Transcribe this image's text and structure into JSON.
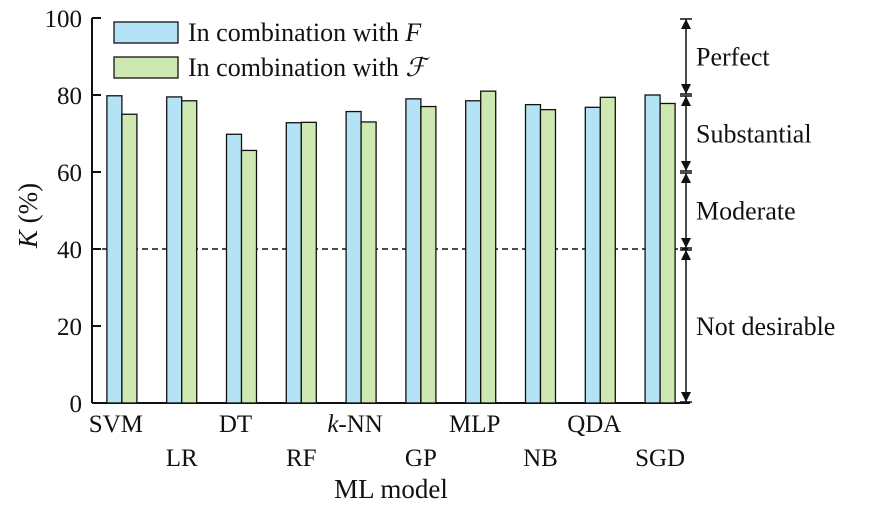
{
  "chart_data": {
    "type": "bar",
    "xlabel": "ML model",
    "ylabel": "K (%)",
    "ylim": [
      0,
      100
    ],
    "yticks": [
      0,
      20,
      40,
      60,
      80,
      100
    ],
    "grid": false,
    "legend_position": "top-left",
    "categories": [
      "SVM",
      "LR",
      "DT",
      "RF",
      "k-NN",
      "GP",
      "MLP",
      "NB",
      "QDA",
      "SGD"
    ],
    "series": [
      {
        "name": "In combination with F",
        "color": "#b3e3f5",
        "values": [
          79.8,
          79.5,
          69.8,
          72.8,
          75.7,
          79.0,
          78.5,
          77.5,
          76.8,
          80.0
        ]
      },
      {
        "name": "In combination with ℱ",
        "color": "#cde8b1",
        "values": [
          75.0,
          78.5,
          65.6,
          72.9,
          73.0,
          77.0,
          81.0,
          76.2,
          79.4,
          77.8
        ]
      }
    ],
    "reference_line": {
      "value": 40,
      "style": "dashed"
    },
    "bands": [
      {
        "label": "Perfect",
        "from": 80,
        "to": 100
      },
      {
        "label": "Substantial",
        "from": 60,
        "to": 80
      },
      {
        "label": "Moderate",
        "from": 40,
        "to": 60
      },
      {
        "label": "Not desirable",
        "from": 0,
        "to": 40
      }
    ]
  },
  "labels": {
    "legend_prefix": "In combination with ",
    "legend_sym_1": "F",
    "legend_sym_2": "ℱ",
    "ylabel_sym": "K",
    "ylabel_unit": " (%)",
    "category_prefix_knn": "k",
    "category_suffix_knn": "-NN"
  }
}
